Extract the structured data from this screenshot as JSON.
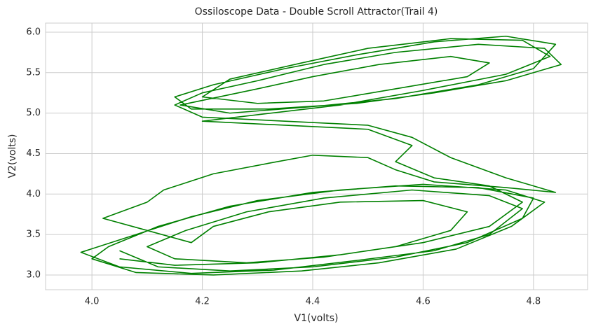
{
  "chart_data": {
    "type": "line",
    "title": "Ossiloscope Data - Double Scroll Attractor(Trail 4)",
    "x_label": "V1(volts)",
    "y_label": "V2(volts)",
    "grid": true,
    "xlim": [
      3.916,
      4.898
    ],
    "ylim": [
      2.818,
      6.112
    ],
    "xticks": [
      {
        "value": 4.0,
        "label": "4.0"
      },
      4.2,
      4.4,
      4.6,
      4.8
    ],
    "yticks": [
      {
        "value": 3.0,
        "label": "3.0"
      },
      3.5,
      {
        "value": 4.0,
        "label": "4.0"
      },
      4.5,
      {
        "value": 5.0,
        "label": "5.0"
      },
      5.5,
      {
        "value": 6.0,
        "label": "6.0"
      }
    ],
    "series": [
      {
        "color": "#008000",
        "x": [
          4.05,
          4.12,
          4.25,
          4.4,
          4.55,
          4.68,
          4.78,
          4.8,
          4.7,
          4.55,
          4.4,
          4.25,
          4.12,
          4.03,
          4.0,
          4.08,
          4.22,
          4.38,
          4.52,
          4.66,
          4.76,
          4.82,
          4.75,
          4.6,
          4.45,
          4.3,
          4.18,
          4.08,
          3.98,
          4.05,
          4.18,
          4.33,
          4.48,
          4.62,
          4.72,
          4.78,
          4.72,
          4.58,
          4.42,
          4.28,
          4.17,
          4.1,
          4.15,
          4.28,
          4.42,
          4.55,
          4.65,
          4.68,
          4.6,
          4.45,
          4.32,
          4.22,
          4.18,
          4.1,
          4.02,
          4.1,
          4.13,
          4.22,
          4.32,
          4.4,
          4.5,
          4.55,
          4.62,
          4.75,
          4.84,
          4.75,
          4.65,
          4.58,
          4.5,
          4.35,
          4.2,
          4.15,
          4.2,
          4.3,
          4.42,
          4.55,
          4.7,
          4.82,
          4.85,
          4.75,
          4.62,
          4.48,
          4.32,
          4.18,
          4.15,
          4.22,
          4.35,
          4.48,
          4.62,
          4.75,
          4.84,
          4.8,
          4.7,
          4.55,
          4.4,
          4.25,
          4.16,
          4.3,
          4.4,
          4.52,
          4.65,
          4.72,
          4.68,
          4.55,
          4.42,
          4.3,
          4.2,
          4.25,
          4.38,
          4.5,
          4.65,
          4.78,
          4.83,
          4.75,
          4.6,
          4.45,
          4.3,
          4.2,
          4.35,
          4.5,
          4.58,
          4.55,
          4.62,
          4.72,
          4.78,
          4.72,
          4.6,
          4.45,
          4.3,
          4.15,
          4.05
        ],
        "values": [
          3.3,
          3.1,
          3.05,
          3.1,
          3.22,
          3.4,
          3.7,
          3.95,
          4.08,
          4.1,
          4.02,
          3.85,
          3.6,
          3.35,
          3.2,
          3.03,
          3.0,
          3.05,
          3.15,
          3.32,
          3.6,
          3.9,
          4.05,
          4.12,
          4.05,
          3.92,
          3.72,
          3.5,
          3.28,
          3.1,
          3.02,
          3.06,
          3.18,
          3.3,
          3.5,
          3.82,
          3.98,
          4.05,
          3.95,
          3.78,
          3.55,
          3.35,
          3.2,
          3.15,
          3.22,
          3.35,
          3.55,
          3.78,
          3.92,
          3.9,
          3.78,
          3.6,
          3.4,
          3.55,
          3.7,
          3.9,
          4.05,
          4.25,
          4.38,
          4.48,
          4.45,
          4.3,
          4.15,
          4.08,
          4.02,
          4.2,
          4.45,
          4.7,
          4.85,
          4.9,
          4.95,
          5.1,
          5.25,
          5.4,
          5.6,
          5.75,
          5.85,
          5.8,
          5.6,
          5.4,
          5.25,
          5.12,
          5.05,
          5.05,
          5.2,
          5.35,
          5.55,
          5.72,
          5.88,
          5.95,
          5.85,
          5.55,
          5.35,
          5.18,
          5.08,
          5.0,
          5.1,
          5.3,
          5.45,
          5.6,
          5.7,
          5.62,
          5.45,
          5.3,
          5.15,
          5.12,
          5.2,
          5.42,
          5.62,
          5.8,
          5.92,
          5.9,
          5.7,
          5.48,
          5.28,
          5.1,
          4.98,
          4.9,
          4.85,
          4.8,
          4.6,
          4.4,
          4.2,
          4.1,
          3.9,
          3.6,
          3.4,
          3.25,
          3.15,
          3.12,
          3.2
        ]
      }
    ]
  }
}
